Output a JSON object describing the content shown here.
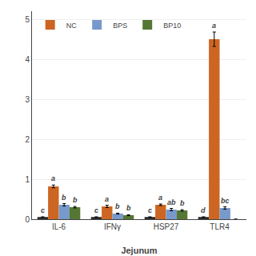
{
  "chart_data": {
    "type": "bar",
    "xlabel": "Jejunum",
    "categories": [
      "IL-6",
      "IFNγ",
      "HSP27",
      "TLR4"
    ],
    "series": [
      {
        "color": "#2a2a2a",
        "values": [
          0.055,
          0.055,
          0.055,
          0.055
        ],
        "errors": [
          0.004,
          0.004,
          0.004,
          0.004
        ],
        "letters": [
          "c",
          "c",
          "c",
          "d"
        ]
      },
      {
        "name": "NC",
        "color": "#cc6622",
        "values": [
          0.82,
          0.32,
          0.36,
          4.5
        ],
        "errors": [
          0.035,
          0.03,
          0.02,
          0.18
        ],
        "letters": [
          "a",
          "a",
          "a",
          "a"
        ]
      },
      {
        "name": "BPS",
        "color": "#7799cc",
        "values": [
          0.36,
          0.14,
          0.24,
          0.28
        ],
        "errors": [
          0.03,
          0.012,
          0.03,
          0.03
        ],
        "letters": [
          "b",
          "b",
          "ab",
          "bc"
        ]
      },
      {
        "name": "BP10",
        "color": "#557733",
        "values": [
          0.3,
          0.1,
          0.22,
          0.0
        ],
        "errors": [
          0.018,
          0.012,
          0.018,
          0.0
        ],
        "letters": [
          "b",
          "b",
          "b",
          null
        ]
      }
    ],
    "ylim": [
      0,
      5.2
    ],
    "yticks": [
      0,
      1,
      2,
      3,
      4,
      5
    ],
    "grid": true,
    "legend": "upper left"
  }
}
